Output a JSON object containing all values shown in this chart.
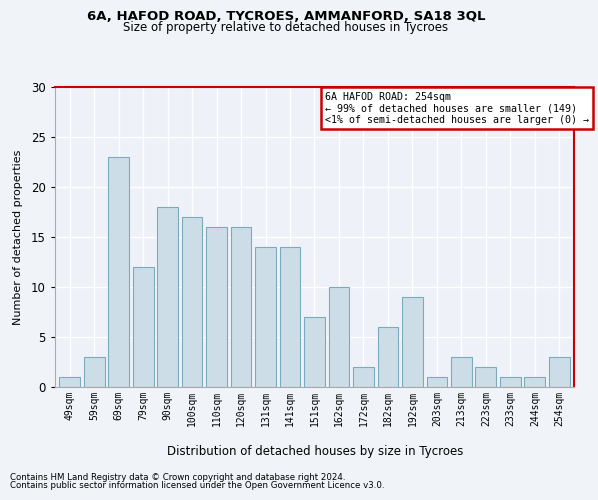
{
  "title1": "6A, HAFOD ROAD, TYCROES, AMMANFORD, SA18 3QL",
  "title2": "Size of property relative to detached houses in Tycroes",
  "xlabel": "Distribution of detached houses by size in Tycroes",
  "ylabel": "Number of detached properties",
  "categories": [
    "49sqm",
    "59sqm",
    "69sqm",
    "79sqm",
    "90sqm",
    "100sqm",
    "110sqm",
    "120sqm",
    "131sqm",
    "141sqm",
    "151sqm",
    "162sqm",
    "172sqm",
    "182sqm",
    "192sqm",
    "203sqm",
    "213sqm",
    "223sqm",
    "233sqm",
    "244sqm",
    "254sqm"
  ],
  "values": [
    1,
    3,
    23,
    12,
    18,
    17,
    16,
    16,
    14,
    14,
    7,
    10,
    2,
    6,
    9,
    1,
    3,
    2,
    1,
    1,
    3
  ],
  "bar_color": "#ccdde8",
  "bar_edge_color": "#7aaabb",
  "ylim": [
    0,
    30
  ],
  "yticks": [
    0,
    5,
    10,
    15,
    20,
    25,
    30
  ],
  "annotation_line1": "6A HAFOD ROAD: 254sqm",
  "annotation_line2": "← 99% of detached houses are smaller (149)",
  "annotation_line3": "<1% of semi-detached houses are larger (0) →",
  "footnote1": "Contains HM Land Registry data © Crown copyright and database right 2024.",
  "footnote2": "Contains public sector information licensed under the Open Government Licence v3.0.",
  "red_color": "#cc0000",
  "bg_color": "#f0f4f8",
  "plot_bg_color": "#eef2f8"
}
